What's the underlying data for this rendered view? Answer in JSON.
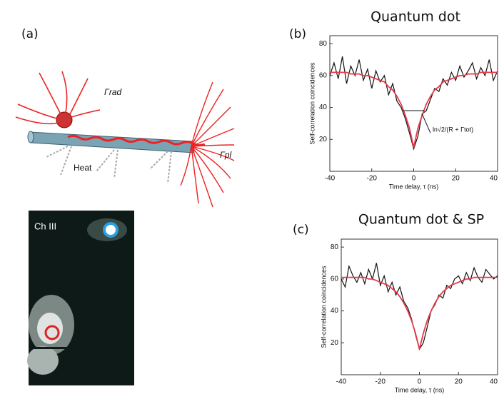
{
  "panel_a": {
    "label": "(a)",
    "gamma_rad": "Γrad",
    "gamma_pl": "Γpl",
    "heat": "Heat",
    "image_label": "Ch III"
  },
  "chart_data": [
    {
      "type": "line",
      "panel": "(b)",
      "title": "Quantum dot",
      "x_label": "Time delay, τ (ns)",
      "y_label": "Self-correlation coincidences",
      "annotation": "ln√2/(R + Γtot)",
      "x": [
        -40,
        -38,
        -36,
        -34,
        -32,
        -30,
        -28,
        -26,
        -24,
        -22,
        -20,
        -18,
        -16,
        -14,
        -12,
        -10,
        -8,
        -6,
        -4,
        -2,
        0,
        2,
        4,
        6,
        8,
        10,
        12,
        14,
        16,
        18,
        20,
        22,
        24,
        26,
        28,
        30,
        32,
        34,
        36,
        38,
        40
      ],
      "series": [
        {
          "color": "#111111",
          "values": [
            60,
            68,
            58,
            72,
            55,
            66,
            60,
            70,
            57,
            64,
            52,
            63,
            56,
            60,
            48,
            55,
            44,
            40,
            33,
            24,
            14,
            22,
            36,
            38,
            45,
            52,
            50,
            58,
            54,
            62,
            57,
            66,
            59,
            63,
            68,
            58,
            65,
            60,
            70,
            57,
            63
          ]
        },
        {
          "color": "#e8394a",
          "values": [
            62,
            62,
            62,
            62,
            62,
            61,
            61,
            61,
            60,
            60,
            59,
            58,
            57,
            56,
            53,
            51,
            47,
            42,
            35,
            27,
            15,
            27,
            35,
            42,
            47,
            51,
            53,
            56,
            57,
            58,
            59,
            60,
            60,
            61,
            61,
            61,
            62,
            62,
            62,
            62,
            62
          ]
        }
      ],
      "xlim": [
        -40,
        40
      ],
      "xticks": [
        -40,
        -20,
        0,
        20,
        40
      ],
      "ylim": [
        0,
        85
      ],
      "yticks": [
        20,
        40,
        60,
        80
      ]
    },
    {
      "type": "line",
      "panel": "(c)",
      "title": "Quantum dot & SP",
      "x_label": "Time delay, τ (ns)",
      "y_label": "Self-correlation coincidences",
      "x": [
        -40,
        -38,
        -36,
        -34,
        -32,
        -30,
        -28,
        -26,
        -24,
        -22,
        -20,
        -18,
        -16,
        -14,
        -12,
        -10,
        -8,
        -6,
        -4,
        -2,
        0,
        2,
        4,
        6,
        8,
        10,
        12,
        14,
        16,
        18,
        20,
        22,
        24,
        26,
        28,
        30,
        32,
        34,
        36,
        38,
        40
      ],
      "series": [
        {
          "color": "#111111",
          "values": [
            60,
            55,
            68,
            62,
            58,
            64,
            57,
            66,
            60,
            70,
            56,
            62,
            52,
            58,
            50,
            55,
            46,
            42,
            35,
            25,
            16,
            20,
            30,
            40,
            44,
            50,
            48,
            56,
            54,
            60,
            62,
            57,
            64,
            59,
            67,
            61,
            58,
            66,
            63,
            60,
            62
          ]
        },
        {
          "color": "#e8394a",
          "values": [
            61,
            61,
            61,
            61,
            61,
            61,
            61,
            60,
            60,
            59,
            58,
            57,
            56,
            54,
            52,
            49,
            45,
            40,
            34,
            26,
            16,
            26,
            34,
            40,
            45,
            49,
            52,
            54,
            56,
            57,
            58,
            59,
            60,
            60,
            61,
            61,
            61,
            61,
            61,
            61,
            61
          ]
        }
      ],
      "xlim": [
        -40,
        40
      ],
      "xticks": [
        -40,
        -20,
        0,
        20,
        40
      ],
      "ylim": [
        0,
        85
      ],
      "yticks": [
        20,
        40,
        60,
        80
      ]
    }
  ]
}
